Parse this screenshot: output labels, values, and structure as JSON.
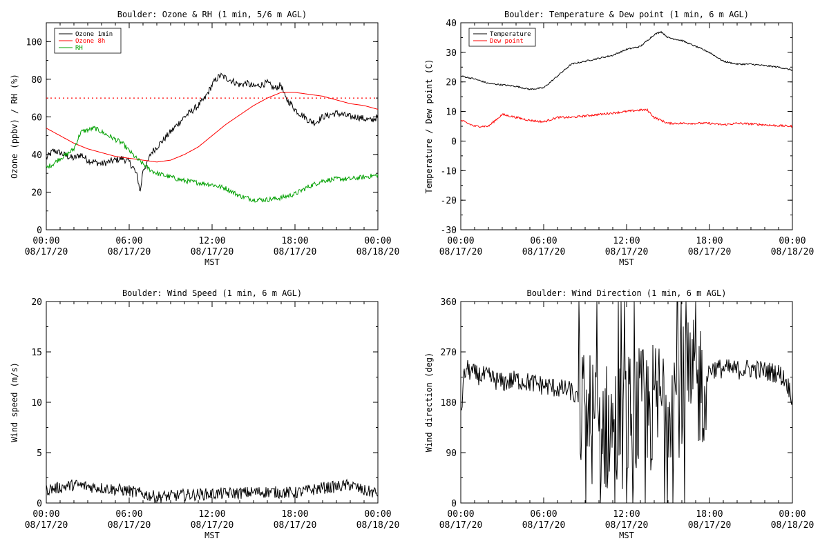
{
  "chart_data": [
    {
      "type": "line",
      "title": "Boulder: Ozone & RH (1 min, 5/6 m AGL)",
      "ylabel": "Ozone (ppbv) / RH (%)",
      "xlabel": "MST",
      "ylim": [
        0,
        110
      ],
      "yticks": [
        0,
        20,
        40,
        60,
        80,
        100
      ],
      "xtick_labels": [
        [
          "00:00",
          "08/17/20"
        ],
        [
          "06:00",
          "08/17/20"
        ],
        [
          "12:00",
          "08/17/20"
        ],
        [
          "18:00",
          "08/17/20"
        ],
        [
          "00:00",
          "08/18/20"
        ]
      ],
      "legend_position": "top-left",
      "reference_line": {
        "y": 70,
        "style": "dotted",
        "color": "#ff0000"
      },
      "series": [
        {
          "name": "Ozone 1min",
          "color": "#000000",
          "noise": 1.8,
          "x": [
            0,
            0.5,
            1,
            1.5,
            2,
            2.5,
            3,
            3.5,
            4,
            4.5,
            5,
            5.5,
            6,
            6.3,
            6.6,
            6.8,
            7,
            7.3,
            7.6,
            8,
            8.5,
            9,
            9.5,
            10,
            10.5,
            11,
            11.5,
            12,
            12.3,
            12.6,
            12.9,
            13.2,
            13.5,
            14,
            14.5,
            15,
            15.5,
            16,
            16.5,
            17,
            17.3,
            17.7,
            18,
            18.3,
            18.7,
            19,
            19.5,
            20,
            20.5,
            21,
            21.5,
            22,
            22.5,
            23,
            23.5,
            24
          ],
          "y": [
            38,
            42,
            41,
            39,
            38,
            40,
            37,
            36,
            35,
            36,
            37,
            38,
            36,
            33,
            28,
            20,
            32,
            35,
            41,
            44,
            48,
            52,
            56,
            60,
            63,
            66,
            70,
            77,
            80,
            82,
            81,
            80,
            79,
            77,
            78,
            76,
            77,
            78,
            75,
            77,
            70,
            67,
            64,
            62,
            60,
            58,
            57,
            60,
            61,
            62,
            61,
            60,
            60,
            59,
            58,
            60
          ]
        },
        {
          "name": "Ozone 8h",
          "color": "#ff0000",
          "noise": 0,
          "x": [
            0,
            1,
            2,
            3,
            4,
            5,
            6,
            7,
            8,
            9,
            10,
            11,
            12,
            13,
            14,
            15,
            16,
            17,
            18,
            19,
            20,
            21,
            22,
            23,
            24
          ],
          "y": [
            54,
            50,
            46,
            43,
            41,
            39,
            38,
            37,
            36,
            37,
            40,
            44,
            50,
            56,
            61,
            66,
            70,
            73,
            73,
            72,
            71,
            69,
            67,
            66,
            64
          ]
        },
        {
          "name": "RH",
          "color": "#00a000",
          "noise": 1.3,
          "x": [
            0,
            0.5,
            1,
            1.5,
            2,
            2.5,
            3,
            3.5,
            4,
            4.5,
            5,
            5.5,
            6,
            6.5,
            7,
            7.5,
            8,
            9,
            10,
            11,
            12,
            13,
            14,
            14.5,
            15,
            16,
            17,
            18,
            19,
            20,
            21,
            22,
            23,
            24
          ],
          "y": [
            33,
            35,
            38,
            40,
            43,
            52,
            53,
            54,
            52,
            50,
            48,
            46,
            42,
            38,
            35,
            32,
            30,
            28,
            26,
            25,
            24,
            22,
            18,
            17,
            16,
            16,
            17,
            19,
            23,
            26,
            27,
            27,
            28,
            29
          ]
        }
      ]
    },
    {
      "type": "line",
      "title": "Boulder: Temperature & Dew point (1 min, 6 m AGL)",
      "ylabel": "Temperature / Dew point (C)",
      "xlabel": "MST",
      "ylim": [
        -30,
        40
      ],
      "yticks": [
        -30,
        -20,
        -10,
        0,
        10,
        20,
        30,
        40
      ],
      "xtick_labels": [
        [
          "00:00",
          "08/17/20"
        ],
        [
          "06:00",
          "08/17/20"
        ],
        [
          "12:00",
          "08/17/20"
        ],
        [
          "18:00",
          "08/17/20"
        ],
        [
          "00:00",
          "08/18/20"
        ]
      ],
      "legend_position": "top-left",
      "series": [
        {
          "name": "Temperature",
          "color": "#000000",
          "noise": 0.25,
          "x": [
            0,
            1,
            2,
            3,
            4,
            5,
            6,
            7,
            8,
            9,
            10,
            11,
            12,
            13,
            13.5,
            14,
            14.5,
            15,
            16,
            17,
            17.5,
            18,
            19,
            20,
            21,
            22,
            23,
            24
          ],
          "y": [
            22,
            21,
            19.5,
            19,
            18.5,
            17.5,
            18,
            22,
            26,
            27,
            28,
            29,
            31,
            32,
            34,
            36,
            37,
            35,
            34,
            32,
            31,
            30,
            27,
            26,
            26,
            25.5,
            25,
            24
          ]
        },
        {
          "name": "Dew point",
          "color": "#ff0000",
          "noise": 0.35,
          "x": [
            0,
            1,
            2,
            3,
            4,
            5,
            6,
            7,
            8,
            9,
            10,
            11,
            12,
            13,
            13.5,
            14,
            14.5,
            15,
            16,
            17,
            18,
            19,
            20,
            21,
            22,
            23,
            24
          ],
          "y": [
            7,
            5,
            5,
            9,
            8,
            7,
            6.5,
            8,
            8,
            8.5,
            9,
            9.5,
            10,
            10.5,
            10.5,
            8,
            7,
            6,
            6,
            6,
            6,
            5.5,
            6,
            5.8,
            5.5,
            5.2,
            5
          ]
        }
      ]
    },
    {
      "type": "line",
      "title": "Boulder: Wind Speed (1 min, 6 m AGL)",
      "ylabel": "Wind speed (m/s)",
      "xlabel": "MST",
      "ylim": [
        0,
        20
      ],
      "yticks": [
        0,
        5,
        10,
        15,
        20
      ],
      "xtick_labels": [
        [
          "00:00",
          "08/17/20"
        ],
        [
          "06:00",
          "08/17/20"
        ],
        [
          "12:00",
          "08/17/20"
        ],
        [
          "18:00",
          "08/17/20"
        ],
        [
          "00:00",
          "08/18/20"
        ]
      ],
      "series": [
        {
          "name": "",
          "color": "#000000",
          "noise": 0.6,
          "x": [
            0,
            2,
            4,
            6,
            8,
            10,
            12,
            14,
            16,
            18,
            20,
            21,
            22,
            23,
            24
          ],
          "y": [
            1.3,
            1.8,
            1.5,
            1.2,
            0.6,
            0.8,
            0.9,
            1.0,
            1.1,
            1.0,
            1.5,
            1.6,
            1.8,
            1.2,
            1.0
          ]
        }
      ]
    },
    {
      "type": "line",
      "title": "Boulder: Wind Direction (1 min, 6 m AGL)",
      "ylabel": "Wind direction (deg)",
      "xlabel": "MST",
      "ylim": [
        0,
        360
      ],
      "yticks": [
        0,
        90,
        180,
        270,
        360
      ],
      "xtick_labels": [
        [
          "00:00",
          "08/17/20"
        ],
        [
          "06:00",
          "08/17/20"
        ],
        [
          "12:00",
          "08/17/20"
        ],
        [
          "18:00",
          "08/17/20"
        ],
        [
          "00:00",
          "08/18/20"
        ]
      ],
      "series": [
        {
          "name": "",
          "color": "#000000",
          "noise": 18,
          "x": [
            0,
            0.2,
            0.4,
            1,
            2,
            3,
            4,
            5,
            6,
            7,
            8,
            9,
            10,
            11,
            12,
            13,
            14,
            15,
            16,
            17,
            17.8,
            18,
            19,
            20,
            21,
            22,
            23,
            23.5,
            24
          ],
          "y": [
            150,
            220,
            240,
            230,
            225,
            215,
            220,
            215,
            210,
            205,
            200,
            160,
            140,
            130,
            150,
            160,
            170,
            200,
            200,
            210,
            220,
            240,
            240,
            238,
            240,
            236,
            232,
            220,
            190
          ]
        }
      ]
    }
  ]
}
